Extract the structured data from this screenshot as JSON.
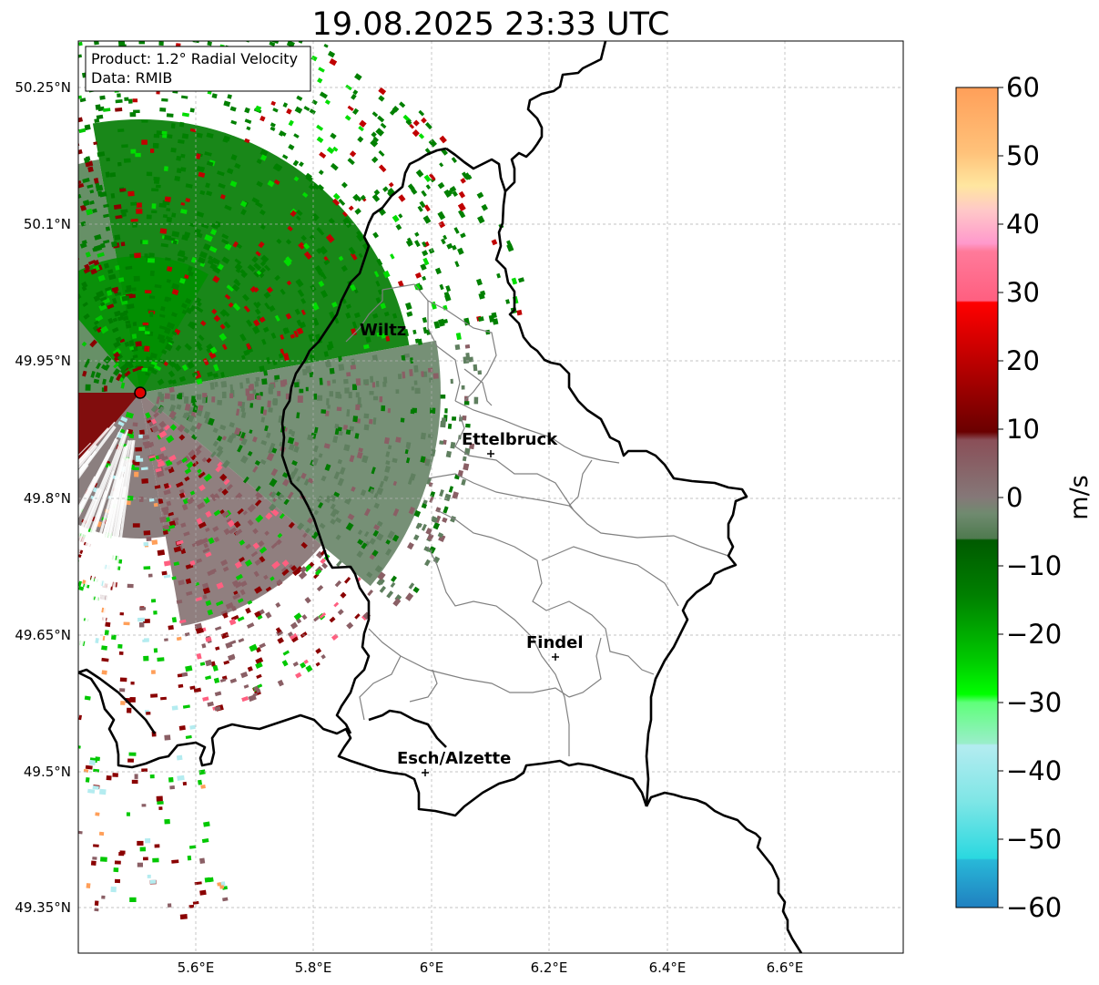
{
  "title": "19.08.2025 23:33 UTC",
  "info": {
    "line1": "Product: 1.2° Radial Velocity",
    "line2": "Data: RMIB"
  },
  "axes": {
    "x_ticks": [
      "5.6°E",
      "5.8°E",
      "6°E",
      "6.2°E",
      "6.4°E",
      "6.6°E"
    ],
    "y_ticks": [
      "50.25°N",
      "50.1°N",
      "49.95°N",
      "49.8°N",
      "49.65°N",
      "49.5°N",
      "49.35°N"
    ]
  },
  "cities": [
    {
      "name": "Wiltz"
    },
    {
      "name": "Ettelbruck"
    },
    {
      "name": "Findel"
    },
    {
      "name": "Esch/Alzette"
    }
  ],
  "colorbar": {
    "label": "m/s",
    "ticks": [
      "60",
      "50",
      "40",
      "30",
      "20",
      "10",
      "0",
      "−10",
      "−20",
      "−30",
      "−40",
      "−50",
      "−60"
    ],
    "range": [
      -60,
      60
    ],
    "colors": [
      "#ff9f59",
      "#ffb870",
      "#ffd58a",
      "#ffe6a0",
      "#ffc8c8",
      "#ff99cc",
      "#ff5f80",
      "#ff0000",
      "#c00000",
      "#7a0000",
      "#8a4f58",
      "#8a7878",
      "#6f8a6f",
      "#4f7a4f",
      "#006400",
      "#008c00",
      "#00c800",
      "#00ff00",
      "#5fff7a",
      "#9aeeca",
      "#b4ecf0",
      "#7fe6e6",
      "#2ad8e0",
      "#2f9bd0"
    ]
  },
  "colors": {
    "border": "#000000",
    "canton": "#808080",
    "grid": "#b0b0b0",
    "radar_site": "#e00000"
  }
}
